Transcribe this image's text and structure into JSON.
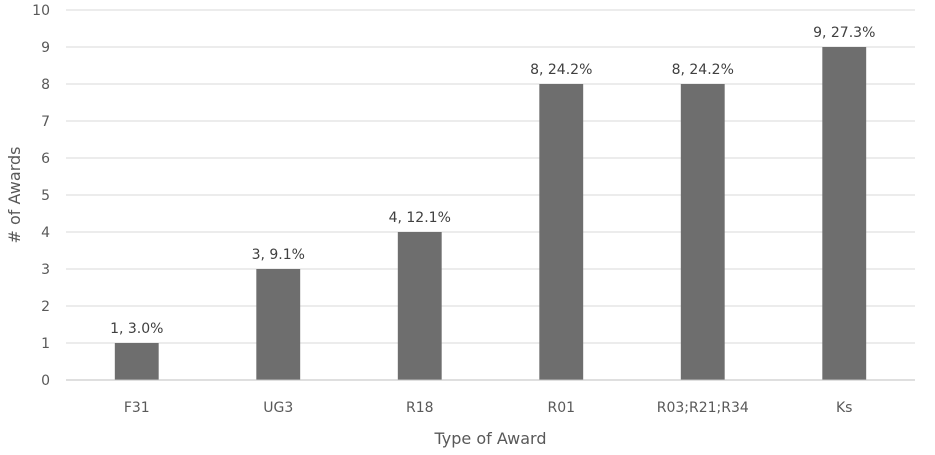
{
  "chart_data": {
    "type": "bar",
    "title": "",
    "xlabel": "Type of Award",
    "ylabel": "# of Awards",
    "categories": [
      "F31",
      "UG3",
      "R18",
      "R01",
      "R03;R21;R34",
      "Ks"
    ],
    "series": [
      {
        "values": [
          1,
          3,
          4,
          8,
          8,
          9
        ],
        "data_labels": [
          "1, 3.0%",
          "3, 9.1%",
          "4, 12.1%",
          "8, 24.2%",
          "8, 24.2%",
          "9, 27.3%"
        ]
      }
    ],
    "ylim": [
      0,
      10
    ],
    "yticks": [
      0,
      1,
      2,
      3,
      4,
      5,
      6,
      7,
      8,
      9,
      10
    ],
    "grid": true,
    "legend": "none",
    "colors": {
      "bar": "#6e6e6e",
      "grid": "#d9d9d9",
      "axis": "#bfbfbf"
    }
  }
}
